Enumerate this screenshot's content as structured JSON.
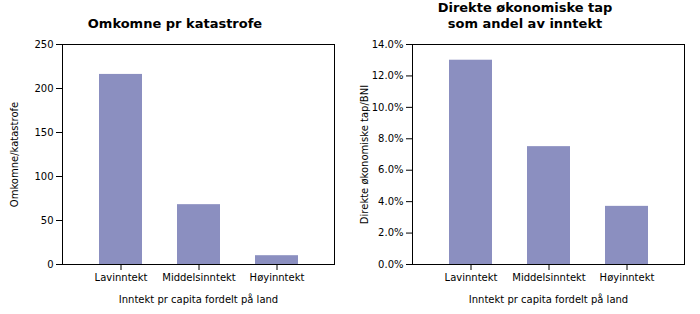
{
  "chart_data": [
    {
      "type": "bar",
      "title": "Omkomne pr katastrofe",
      "categories": [
        "Lavinntekt",
        "Middelsinntekt",
        "Høyinntekt"
      ],
      "values": [
        216,
        68,
        10
      ],
      "color": "#8b8fc0",
      "xlabel": "Inntekt pr capita fordelt på land",
      "ylabel": "Omkomne/katastrofe",
      "ylim": [
        0,
        250
      ],
      "yticks": [
        0,
        50,
        100,
        150,
        200,
        250
      ],
      "grid": false
    },
    {
      "type": "bar",
      "title": "Direkte økonomiske tap\nsom andel av inntekt",
      "categories": [
        "Lavinntekt",
        "Middelsinntekt",
        "Høyinntekt"
      ],
      "values": [
        0.13,
        0.075,
        0.037
      ],
      "color": "#8b8fc0",
      "xlabel": "Inntekt pr capita fordelt på land",
      "ylabel": "Direkte økonomiske tap/BNI",
      "ylim": [
        0,
        0.14
      ],
      "yticks": [
        {
          "value": 0,
          "label": "0.0%"
        },
        {
          "value": 0.02,
          "label": "2.0%"
        },
        {
          "value": 0.04,
          "label": "4.0%"
        },
        {
          "value": 0.06,
          "label": "6.0%"
        },
        {
          "value": 0.08,
          "label": "8.0%"
        },
        {
          "value": 0.1,
          "label": "10.0%"
        },
        {
          "value": 0.12,
          "label": "12.0%"
        },
        {
          "value": 0.14,
          "label": "14.0%"
        }
      ],
      "grid": false
    }
  ]
}
